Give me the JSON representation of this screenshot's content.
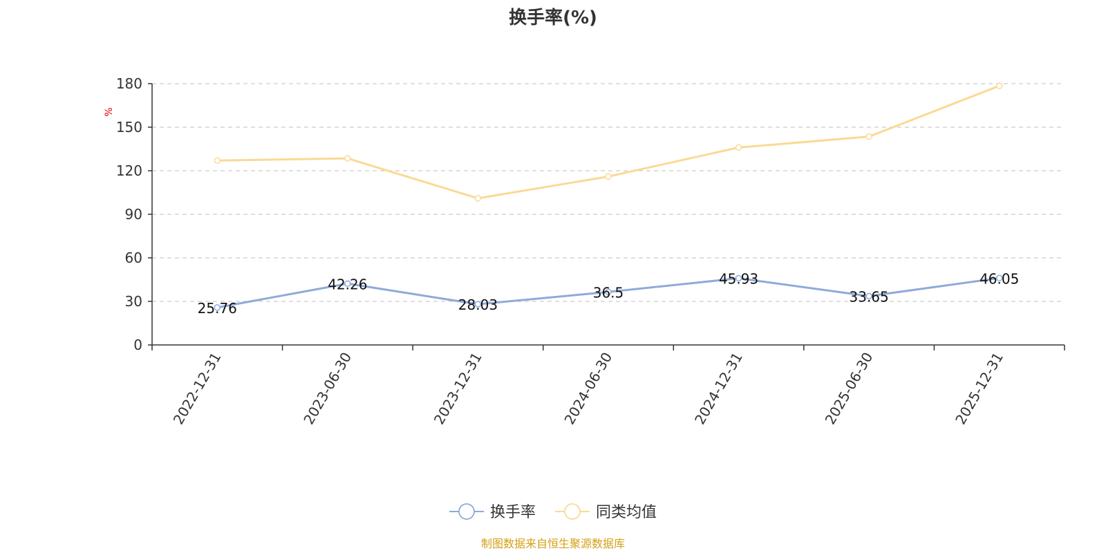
{
  "chart_data": {
    "type": "line",
    "title": "换手率(%)",
    "ylabel": "%",
    "categories": [
      "2022-12-31",
      "2023-06-30",
      "2023-12-31",
      "2024-06-30",
      "2024-12-31",
      "2025-06-30",
      "2025-12-31"
    ],
    "series": [
      {
        "name": "换手率",
        "color": "#8eaad8",
        "values": [
          25.76,
          42.26,
          28.03,
          36.5,
          45.93,
          33.65,
          46.05
        ],
        "value_labels": [
          "25.76",
          "42.26",
          "28.03",
          "36.5",
          "45.93",
          "33.65",
          "46.05"
        ]
      },
      {
        "name": "同类均值",
        "color": "#fbd994",
        "values": [
          127,
          128.5,
          101,
          116,
          136,
          143.5,
          178.5
        ]
      }
    ],
    "ylim": [
      0,
      180
    ],
    "yticks": [
      0,
      30,
      60,
      90,
      120,
      150,
      180
    ],
    "grid": true,
    "legend_position": "bottom-center",
    "source": "制图数据来自恒生聚源数据库"
  }
}
